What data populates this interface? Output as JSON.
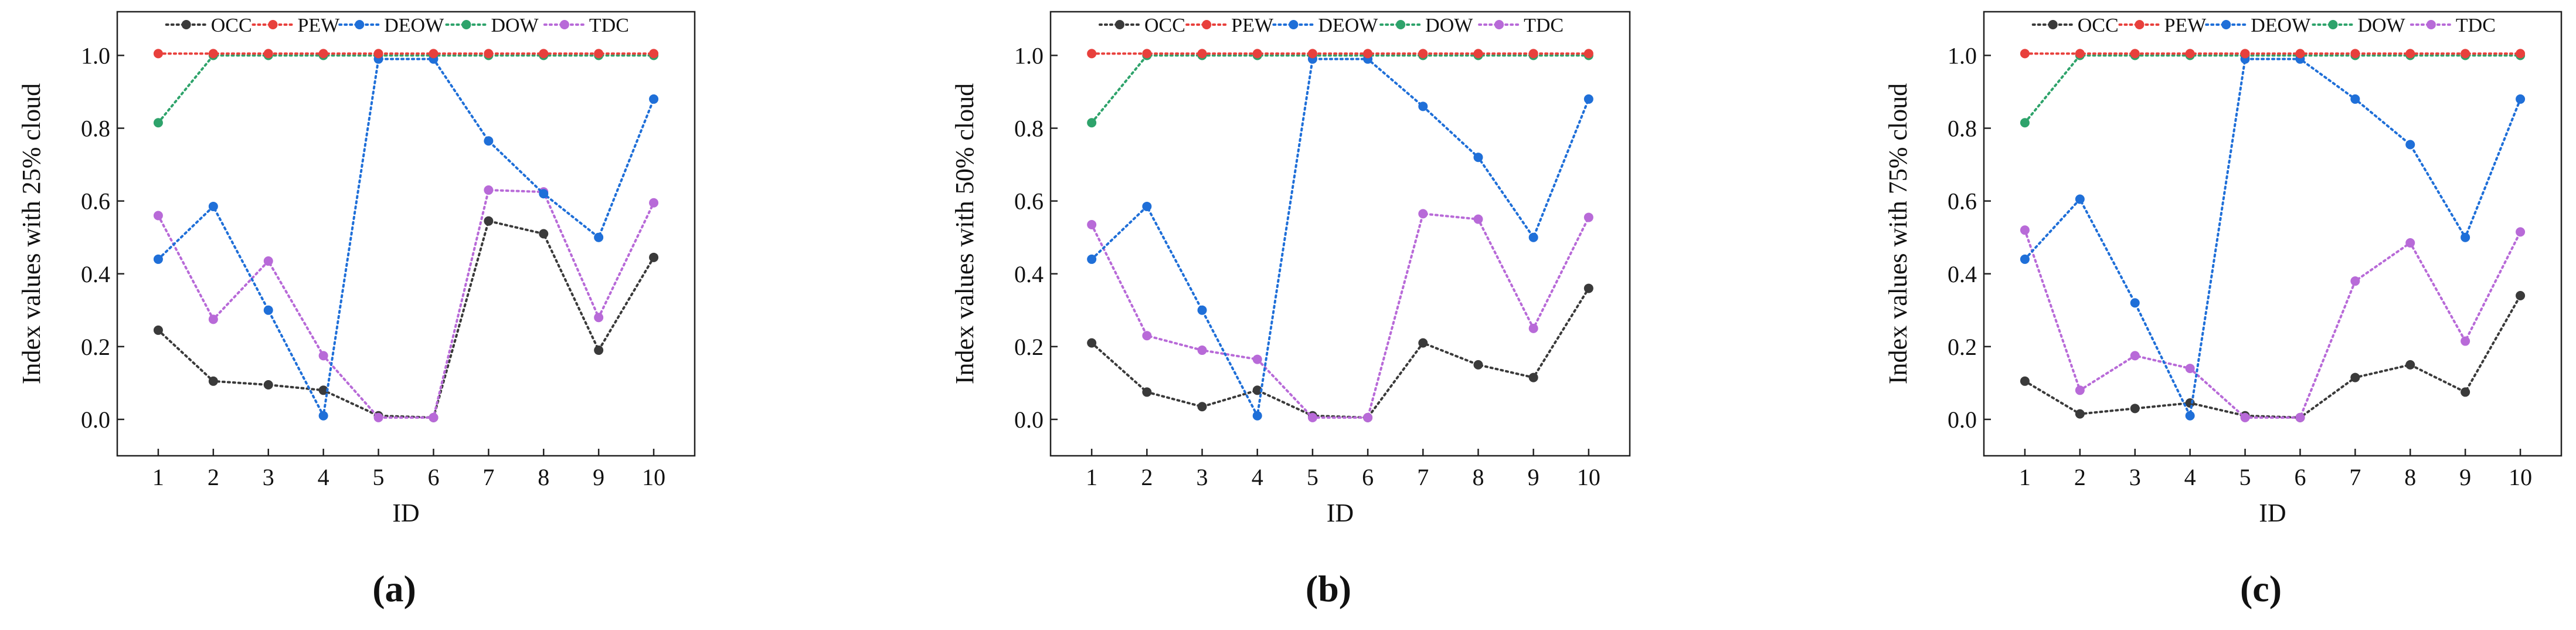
{
  "colors": {
    "OCC": "#3a3a3a",
    "PEW": "#e8403c",
    "DEOW": "#1f6fd8",
    "DOW": "#2ea36b",
    "TDC": "#b86ad8",
    "axis": "#222222"
  },
  "legend_labels": [
    "OCC",
    "PEW",
    "DEOW",
    "DOW",
    "TDC"
  ],
  "chart_data": [
    {
      "type": "line",
      "panel_label": "(a)",
      "xlabel": "ID",
      "ylabel": "Index values with 25% cloud",
      "categories": [
        "1",
        "2",
        "3",
        "4",
        "5",
        "6",
        "7",
        "8",
        "9",
        "10"
      ],
      "yticks": [
        "0.0",
        "0.2",
        "0.4",
        "0.6",
        "0.8",
        "1.0"
      ],
      "ylim": [
        -0.1,
        1.12
      ],
      "legend": "top",
      "series": [
        {
          "name": "OCC",
          "values": [
            0.245,
            0.105,
            0.095,
            0.08,
            0.01,
            0.005,
            0.545,
            0.51,
            0.19,
            0.445
          ]
        },
        {
          "name": "PEW",
          "values": [
            1.005,
            1.005,
            1.005,
            1.005,
            1.005,
            1.005,
            1.005,
            1.005,
            1.005,
            1.005
          ]
        },
        {
          "name": "DEOW",
          "values": [
            0.44,
            0.585,
            0.3,
            0.01,
            0.99,
            0.99,
            0.765,
            0.62,
            0.5,
            0.88
          ]
        },
        {
          "name": "DOW",
          "values": [
            0.815,
            1.0,
            1.0,
            1.0,
            1.0,
            1.0,
            1.0,
            1.0,
            1.0,
            1.0
          ]
        },
        {
          "name": "TDC",
          "values": [
            0.56,
            0.275,
            0.435,
            0.175,
            0.005,
            0.005,
            0.63,
            0.625,
            0.28,
            0.595
          ]
        }
      ]
    },
    {
      "type": "line",
      "panel_label": "(b)",
      "xlabel": "ID",
      "ylabel": "Index values with 50% cloud",
      "categories": [
        "1",
        "2",
        "3",
        "4",
        "5",
        "6",
        "7",
        "8",
        "9",
        "10"
      ],
      "yticks": [
        "0.0",
        "0.2",
        "0.4",
        "0.6",
        "0.8",
        "1.0"
      ],
      "ylim": [
        -0.1,
        1.12
      ],
      "legend": "top",
      "series": [
        {
          "name": "OCC",
          "values": [
            0.21,
            0.075,
            0.035,
            0.08,
            0.01,
            0.005,
            0.21,
            0.15,
            0.115,
            0.36
          ]
        },
        {
          "name": "PEW",
          "values": [
            1.005,
            1.005,
            1.005,
            1.005,
            1.005,
            1.005,
            1.005,
            1.005,
            1.005,
            1.005
          ]
        },
        {
          "name": "DEOW",
          "values": [
            0.44,
            0.585,
            0.3,
            0.01,
            0.99,
            0.99,
            0.86,
            0.72,
            0.5,
            0.88
          ]
        },
        {
          "name": "DOW",
          "values": [
            0.815,
            1.0,
            1.0,
            1.0,
            1.0,
            1.0,
            1.0,
            1.0,
            1.0,
            1.0
          ]
        },
        {
          "name": "TDC",
          "values": [
            0.535,
            0.23,
            0.19,
            0.165,
            0.005,
            0.005,
            0.565,
            0.55,
            0.25,
            0.555
          ]
        }
      ]
    },
    {
      "type": "line",
      "panel_label": "(c)",
      "xlabel": "ID",
      "ylabel": "Index values with 75% cloud",
      "categories": [
        "1",
        "2",
        "3",
        "4",
        "5",
        "6",
        "7",
        "8",
        "9",
        "10"
      ],
      "yticks": [
        "0.0",
        "0.2",
        "0.4",
        "0.6",
        "0.8",
        "1.0"
      ],
      "ylim": [
        -0.1,
        1.12
      ],
      "legend": "top",
      "series": [
        {
          "name": "OCC",
          "values": [
            0.105,
            0.015,
            0.03,
            0.045,
            0.01,
            0.005,
            0.115,
            0.15,
            0.075,
            0.34
          ]
        },
        {
          "name": "PEW",
          "values": [
            1.005,
            1.005,
            1.005,
            1.005,
            1.005,
            1.005,
            1.005,
            1.005,
            1.005,
            1.005
          ]
        },
        {
          "name": "DEOW",
          "values": [
            0.44,
            0.605,
            0.32,
            0.01,
            0.99,
            0.99,
            0.88,
            0.755,
            0.5,
            0.88
          ]
        },
        {
          "name": "DOW",
          "values": [
            0.815,
            1.0,
            1.0,
            1.0,
            1.0,
            1.0,
            1.0,
            1.0,
            1.0,
            1.0
          ]
        },
        {
          "name": "TDC",
          "values": [
            0.52,
            0.08,
            0.175,
            0.14,
            0.005,
            0.005,
            0.38,
            0.485,
            0.215,
            0.515
          ]
        }
      ]
    }
  ]
}
